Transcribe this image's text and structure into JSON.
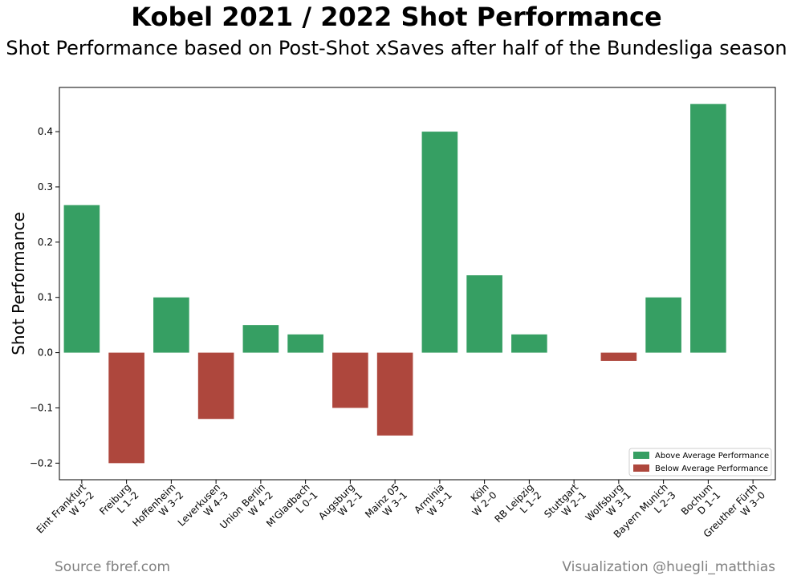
{
  "title": "Kobel 2021 / 2022 Shot Performance",
  "subtitle": "Shot Performance based on Post-Shot xSaves after half of the Bundesliga season",
  "source": "Source fbref.com",
  "credit": "Visualization @huegli_matthias",
  "colors": {
    "above": "#369f63",
    "below": "#ae473d"
  },
  "chart_data": {
    "type": "bar",
    "title": "Kobel 2021 / 2022 Shot Performance",
    "xlabel": "",
    "ylabel": "Shot Performance",
    "ylim": [
      -0.23,
      0.48
    ],
    "yticks": [
      -0.2,
      -0.1,
      0.0,
      0.1,
      0.2,
      0.3,
      0.4
    ],
    "ytick_labels": [
      "−0.2",
      "−0.1",
      "0.0",
      "0.1",
      "0.2",
      "0.3",
      "0.4"
    ],
    "grid": false,
    "legend_position": "bottom-right",
    "legend": [
      "Above Average Performance",
      "Below Average Performance"
    ],
    "categories": [
      {
        "team": "Eint Frankfurt",
        "result": "W 5–2"
      },
      {
        "team": "Freiburg",
        "result": "L 1–2"
      },
      {
        "team": "Hoffenheim",
        "result": "W 3–2"
      },
      {
        "team": "Leverkusen",
        "result": "W 4–3"
      },
      {
        "team": "Union Berlin",
        "result": "W 4–2"
      },
      {
        "team": "M'Gladbach",
        "result": "L 0–1"
      },
      {
        "team": "Augsburg",
        "result": "W 2–1"
      },
      {
        "team": "Mainz 05",
        "result": "W 3–1"
      },
      {
        "team": "Arminia",
        "result": "W 3–1"
      },
      {
        "team": "Köln",
        "result": "W 2–0"
      },
      {
        "team": "RB Leipzig",
        "result": "L 1–2"
      },
      {
        "team": "Stuttgart",
        "result": "W 2–1"
      },
      {
        "team": "Wolfsburg",
        "result": "W 3–1"
      },
      {
        "team": "Bayern Munich",
        "result": "L 2–3"
      },
      {
        "team": "Bochum",
        "result": "D 1–1"
      },
      {
        "team": "Greuther Fürth",
        "result": "W 3–0"
      }
    ],
    "values": [
      0.267,
      -0.2,
      0.1,
      -0.12,
      0.05,
      0.033,
      -0.1,
      -0.15,
      0.4,
      0.14,
      0.033,
      0.0,
      -0.015,
      0.1,
      0.45,
      0.0
    ]
  }
}
